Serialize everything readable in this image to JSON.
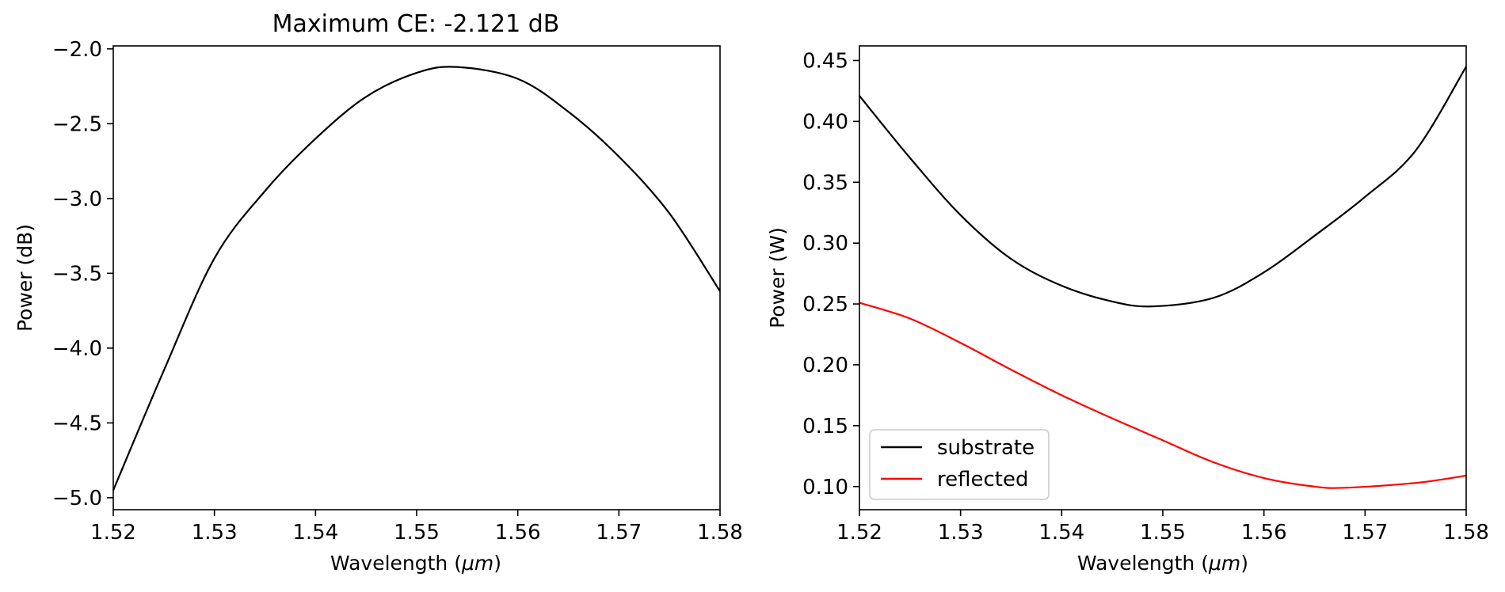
{
  "chart_data": [
    {
      "type": "line",
      "title": "Maximum CE: -2.121 dB",
      "xlabel_prefix": "Wavelength (",
      "xlabel_unit": "μm",
      "xlabel_suffix": ")",
      "ylabel": "Power (dB)",
      "xlim": [
        1.52,
        1.58
      ],
      "ylim": [
        -5.08,
        -1.98
      ],
      "xticks": [
        1.52,
        1.53,
        1.54,
        1.55,
        1.56,
        1.57,
        1.58
      ],
      "xtick_labels": [
        "1.52",
        "1.53",
        "1.54",
        "1.55",
        "1.56",
        "1.57",
        "1.58"
      ],
      "yticks": [
        -2.0,
        -2.5,
        -3.0,
        -3.5,
        -4.0,
        -4.5,
        -5.0
      ],
      "ytick_labels": [
        "−2.0",
        "−2.5",
        "−3.0",
        "−3.5",
        "−4.0",
        "−4.5",
        "−5.0"
      ],
      "grid": false,
      "series": [
        {
          "color": "#000000",
          "x": [
            1.52,
            1.525,
            1.53,
            1.535,
            1.54,
            1.545,
            1.55,
            1.554,
            1.56,
            1.565,
            1.57,
            1.575,
            1.58
          ],
          "y": [
            -4.95,
            -4.15,
            -3.4,
            -2.95,
            -2.6,
            -2.32,
            -2.16,
            -2.121,
            -2.2,
            -2.42,
            -2.72,
            -3.1,
            -3.62
          ]
        }
      ]
    },
    {
      "type": "line",
      "title": "",
      "xlabel_prefix": "Wavelength (",
      "xlabel_unit": "μm",
      "xlabel_suffix": ")",
      "ylabel": "Power (W)",
      "xlim": [
        1.52,
        1.58
      ],
      "ylim": [
        0.081,
        0.462
      ],
      "xticks": [
        1.52,
        1.53,
        1.54,
        1.55,
        1.56,
        1.57,
        1.58
      ],
      "xtick_labels": [
        "1.52",
        "1.53",
        "1.54",
        "1.55",
        "1.56",
        "1.57",
        "1.58"
      ],
      "yticks": [
        0.1,
        0.15,
        0.2,
        0.25,
        0.3,
        0.35,
        0.4,
        0.45
      ],
      "ytick_labels": [
        "0.10",
        "0.15",
        "0.20",
        "0.25",
        "0.30",
        "0.35",
        "0.40",
        "0.45"
      ],
      "grid": false,
      "legend": "lower-left",
      "series": [
        {
          "name": "substrate",
          "color": "#000000",
          "x": [
            1.52,
            1.525,
            1.53,
            1.535,
            1.54,
            1.545,
            1.549,
            1.555,
            1.56,
            1.565,
            1.57,
            1.575,
            1.58
          ],
          "y": [
            0.421,
            0.37,
            0.323,
            0.287,
            0.265,
            0.252,
            0.248,
            0.255,
            0.276,
            0.306,
            0.338,
            0.376,
            0.445
          ]
        },
        {
          "name": "reflected",
          "color": "#ff0000",
          "x": [
            1.52,
            1.525,
            1.53,
            1.535,
            1.54,
            1.545,
            1.55,
            1.555,
            1.56,
            1.565,
            1.568,
            1.575,
            1.58
          ],
          "y": [
            0.251,
            0.238,
            0.218,
            0.196,
            0.175,
            0.156,
            0.138,
            0.12,
            0.107,
            0.1,
            0.099,
            0.103,
            0.109
          ]
        }
      ]
    }
  ]
}
